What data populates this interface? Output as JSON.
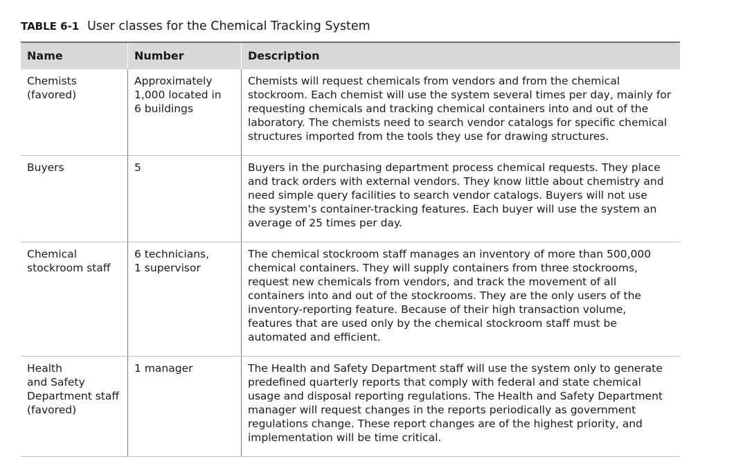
{
  "caption": {
    "label": "TABLE 6-1",
    "title": "User classes for the Chemical Tracking System"
  },
  "table": {
    "headers": {
      "name": "Name",
      "number": "Number",
      "description": "Description"
    },
    "rows": [
      {
        "name": [
          "Chemists",
          "(favored)"
        ],
        "number": [
          "Approximately",
          "1,000 located in",
          "6 buildings"
        ],
        "description": [
          "Chemists will request chemicals from vendors and from the chemical",
          "stockroom. Each chemist will use the system several times per day, mainly for",
          "requesting chemicals and tracking chemical containers into and out of the",
          "laboratory. The chemists need to search vendor catalogs for specific chemical",
          "structures imported from the tools they use for drawing structures."
        ]
      },
      {
        "name": [
          "Buyers"
        ],
        "number": [
          "5"
        ],
        "description": [
          "Buyers in the purchasing department process chemical requests. They place",
          "and track orders with external vendors. They know little about chemistry and",
          "need simple query facilities to search vendor catalogs. Buyers will not use",
          "the system’s container-tracking features. Each buyer will use the system an",
          "average of 25 times per day."
        ]
      },
      {
        "name": [
          "Chemical",
          "stockroom staff"
        ],
        "number": [
          "6 technicians,",
          "1 supervisor"
        ],
        "description": [
          "The chemical stockroom staff manages an inventory of more than 500,000",
          "chemical containers. They will supply containers from three stockrooms,",
          "request new chemicals from vendors, and track the movement of all",
          "containers into and out of the stockrooms. They are the only users of the",
          "inventory-reporting feature. Because of their high transaction volume,",
          "features that are used only by the chemical stockroom staff must be",
          "automated and efficient."
        ]
      },
      {
        "name": [
          "Health",
          "and Safety",
          "Department staff",
          "(favored)"
        ],
        "number": [
          "1 manager"
        ],
        "description": [
          "The Health and Safety Department staff will use the system only to generate",
          "predefined quarterly reports that comply with federal and state chemical",
          "usage and disposal reporting regulations. The Health and Safety Department",
          "manager will request changes in the reports periodically as government",
          "regulations change. These report changes are of the highest priority, and",
          "implementation will be time critical."
        ]
      }
    ]
  }
}
